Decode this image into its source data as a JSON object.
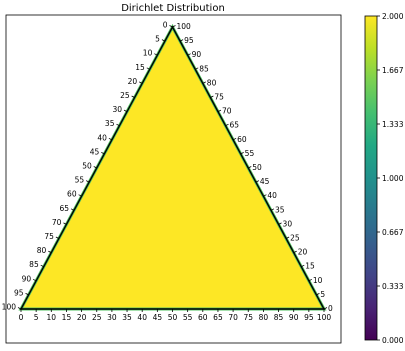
{
  "chart_data": {
    "type": "heatmap",
    "title": "Dirichlet Distribution",
    "plot": "ternary",
    "scale": [
      0,
      100
    ],
    "tick_step": 5,
    "ticks": [
      0,
      5,
      10,
      15,
      20,
      25,
      30,
      35,
      40,
      45,
      50,
      55,
      60,
      65,
      70,
      75,
      80,
      85,
      90,
      95,
      100
    ],
    "fill_value": 2.0,
    "colormap": "viridis",
    "colorbar": {
      "range": [
        0.0,
        2.0
      ],
      "tick_labels": [
        "0.000",
        "0.333",
        "0.667",
        "1.000",
        "1.333",
        "1.667",
        "2.000"
      ]
    },
    "colors": {
      "fill": "#fde725",
      "edge": "#4fc05d",
      "boundary": "#000000"
    }
  }
}
